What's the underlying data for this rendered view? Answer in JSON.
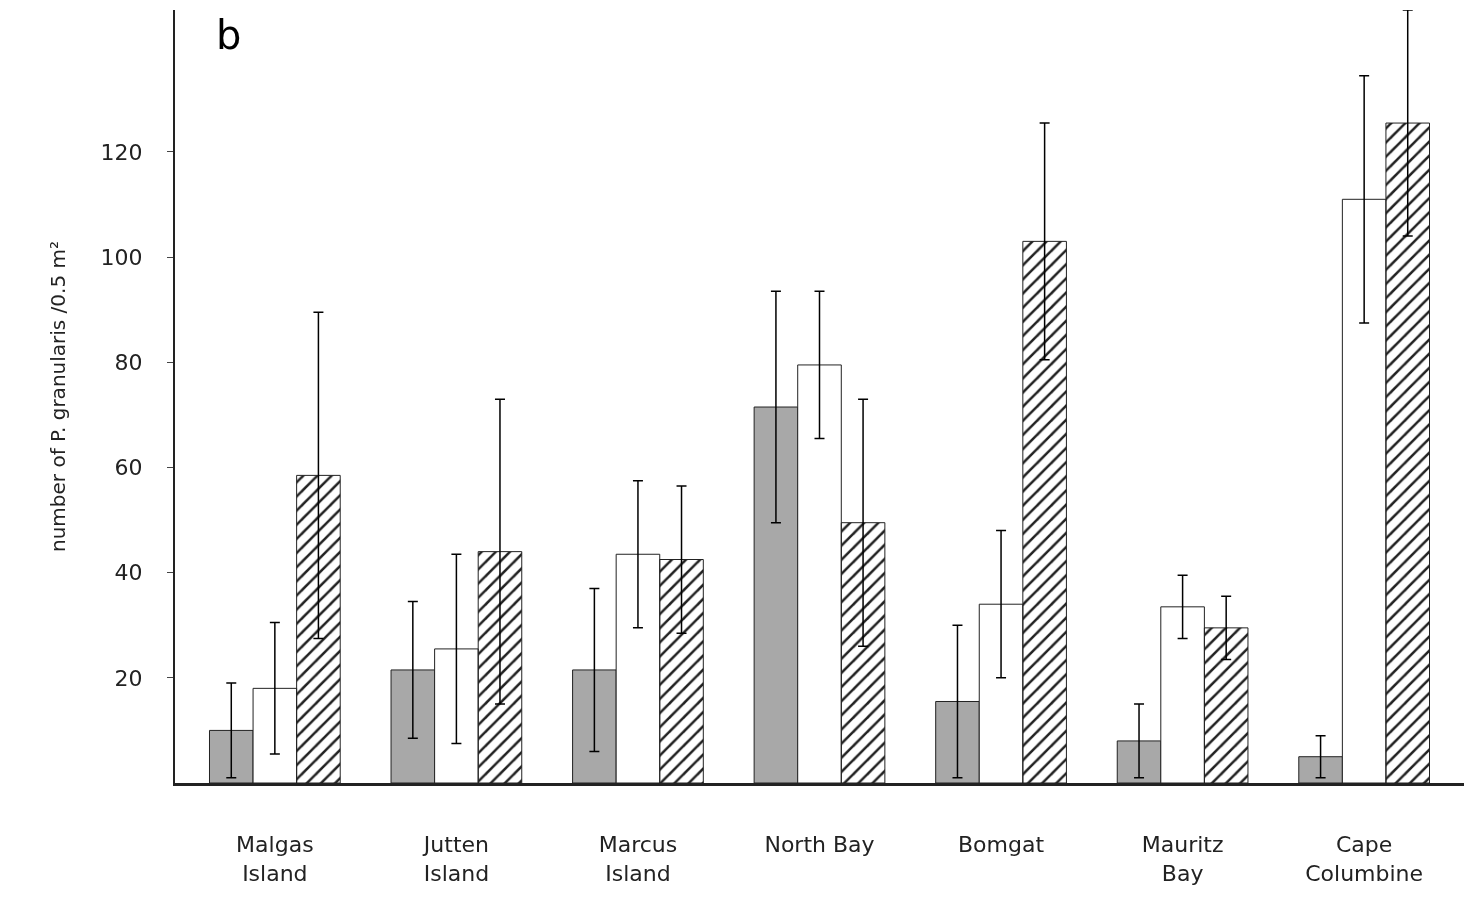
{
  "chart_data": {
    "type": "bar",
    "title": "b",
    "ylabel": "number of P. granularis /0.5 m²",
    "categories": [
      "Malgas\nIsland",
      "Jutten\nIsland",
      "Marcus\nIsland",
      "North Bay",
      "Bomgat",
      "Mauritz\nBay",
      "Cape\nColumbine"
    ],
    "series": [
      {
        "color": "#a8a8a8",
        "values": [
          10,
          21.5,
          21.5,
          71.5,
          15.5,
          8,
          5
        ],
        "errors": [
          9,
          13,
          15.5,
          22,
          14.5,
          7,
          4
        ]
      },
      {
        "color": "#ffffff",
        "values": [
          18,
          25.5,
          43.5,
          79.5,
          34,
          33.5,
          111
        ],
        "errors": [
          12.5,
          18,
          14,
          14,
          14,
          6,
          23.5
        ]
      },
      {
        "color": "#222222",
        "values": [
          58.5,
          44,
          42.5,
          49.5,
          103,
          29.5,
          125.5
        ],
        "errors": [
          31,
          29,
          14,
          23.5,
          22.5,
          6,
          21.5
        ]
      }
    ],
    "ylim": [
      0,
      147
    ],
    "yticks": [
      20,
      40,
      60,
      80,
      100,
      120
    ]
  }
}
